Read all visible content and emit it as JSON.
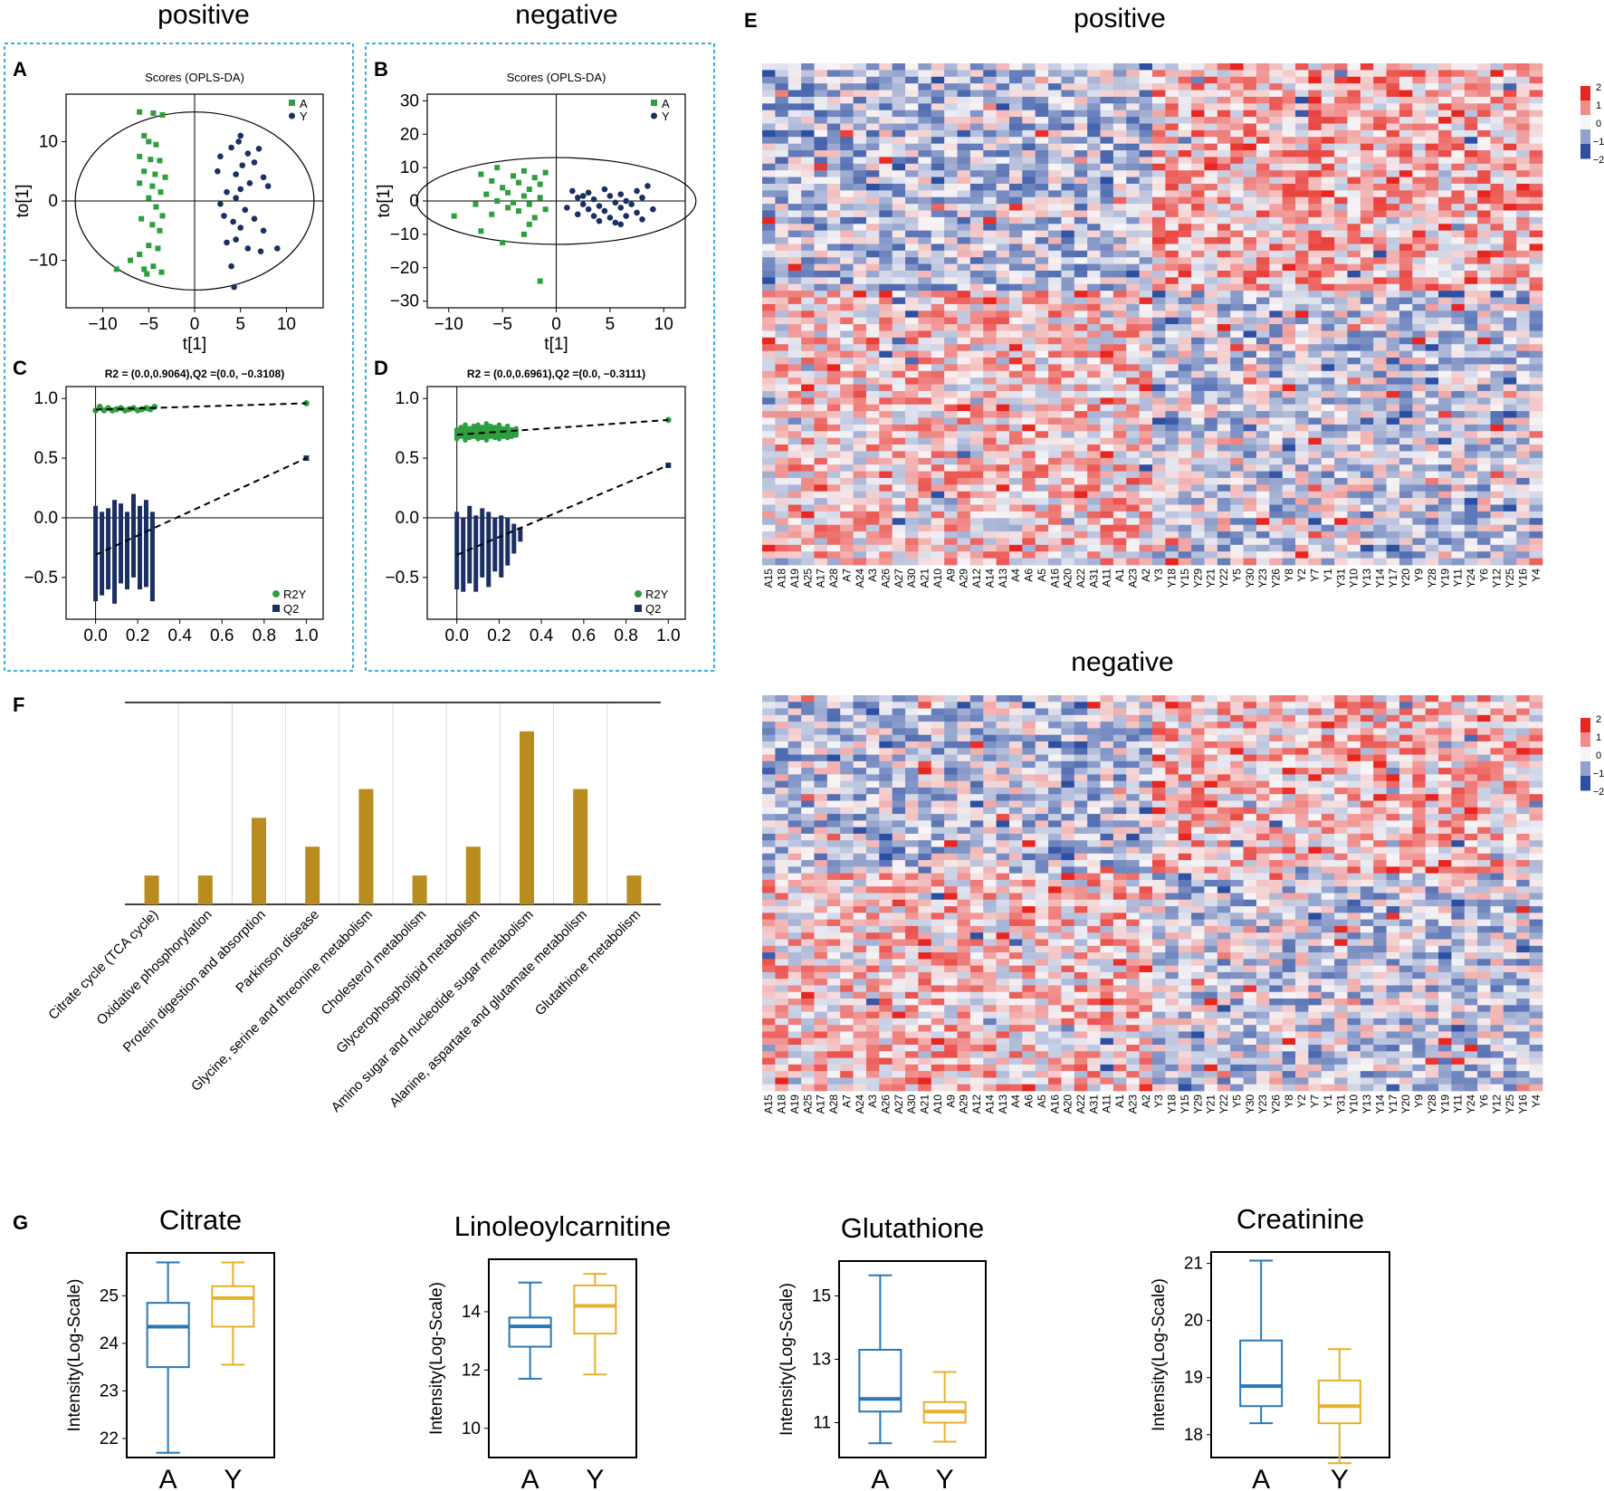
{
  "headers": {
    "pos_left": "positive",
    "neg_left": "negative",
    "pos_heatmap": "positive",
    "neg_heatmap": "negative"
  },
  "panel_letters": {
    "A": "A",
    "B": "B",
    "C": "C",
    "D": "D",
    "E": "E",
    "F": "F",
    "G": "G"
  },
  "chart_data": [
    {
      "id": "A",
      "type": "scatter",
      "title": "Scores (OPLS-DA)",
      "xlabel": "t[1]",
      "ylabel": "to[1]",
      "xlim": [
        -14,
        14
      ],
      "ylim": [
        -18,
        18
      ],
      "xticks": [
        -10,
        -5,
        0,
        5,
        10
      ],
      "yticks": [
        -10,
        0,
        10
      ],
      "legend": [
        "A",
        "Y"
      ],
      "series": [
        {
          "name": "A",
          "color": "#2e9e3e",
          "points": [
            [
              -6,
              15
            ],
            [
              -4.5,
              14.8
            ],
            [
              -3.5,
              14.5
            ],
            [
              -5.5,
              11
            ],
            [
              -5,
              10
            ],
            [
              -4.2,
              9.5
            ],
            [
              -6,
              7.5
            ],
            [
              -4.8,
              7
            ],
            [
              -3.8,
              6.8
            ],
            [
              -5.5,
              5
            ],
            [
              -4.3,
              4.5
            ],
            [
              -3.2,
              4
            ],
            [
              -6,
              3
            ],
            [
              -4.6,
              2.5
            ],
            [
              -3.7,
              1.5
            ],
            [
              -5,
              0.5
            ],
            [
              -4.2,
              -1
            ],
            [
              -3.5,
              -2.5
            ],
            [
              -5.8,
              -3
            ],
            [
              -4.6,
              -4
            ],
            [
              -3.8,
              -5
            ],
            [
              -5,
              -7.5
            ],
            [
              -4,
              -8
            ],
            [
              -6,
              -9
            ],
            [
              -7,
              -10
            ],
            [
              -5.5,
              -11.5
            ],
            [
              -4.5,
              -11
            ],
            [
              -8.5,
              -11.5
            ],
            [
              -3.6,
              -12
            ],
            [
              -5.2,
              -12.3
            ]
          ]
        },
        {
          "name": "Y",
          "color": "#1b2f63",
          "points": [
            [
              5,
              11
            ],
            [
              4.8,
              10
            ],
            [
              7,
              8.8
            ],
            [
              4,
              9
            ],
            [
              5.8,
              8
            ],
            [
              2.8,
              7.5
            ],
            [
              6.5,
              6.5
            ],
            [
              5.2,
              6
            ],
            [
              2.5,
              5
            ],
            [
              4.5,
              4.5
            ],
            [
              7.5,
              4
            ],
            [
              6,
              3
            ],
            [
              8,
              2.5
            ],
            [
              5,
              2
            ],
            [
              3.5,
              1.5
            ],
            [
              4.5,
              0.5
            ],
            [
              2.8,
              -0.5
            ],
            [
              5.5,
              -1.5
            ],
            [
              3.2,
              -2.5
            ],
            [
              6.5,
              -3
            ],
            [
              4.2,
              -3.5
            ],
            [
              5,
              -4.5
            ],
            [
              7.5,
              -5
            ],
            [
              4.5,
              -6.5
            ],
            [
              3.5,
              -7
            ],
            [
              5.8,
              -8
            ],
            [
              7.2,
              -8.5
            ],
            [
              9,
              -8
            ],
            [
              4,
              -11
            ],
            [
              4.3,
              -14.5
            ]
          ]
        }
      ]
    },
    {
      "id": "B",
      "type": "scatter",
      "title": "Scores (OPLS-DA)",
      "xlabel": "t[1]",
      "ylabel": "to[1]",
      "xlim": [
        -12,
        12
      ],
      "ylim": [
        -32,
        32
      ],
      "xticks": [
        -10,
        -5,
        0,
        5,
        10
      ],
      "yticks": [
        30,
        20,
        10,
        0,
        -10,
        -20,
        -30
      ],
      "legend": [
        "A",
        "Y"
      ],
      "series": [
        {
          "name": "A",
          "color": "#2e9e3e",
          "points": [
            [
              -5.5,
              10
            ],
            [
              -3,
              9
            ],
            [
              -1,
              8.5
            ],
            [
              -7,
              8
            ],
            [
              -4,
              7.5
            ],
            [
              -2,
              7
            ],
            [
              -6,
              6
            ],
            [
              -3.5,
              5.5
            ],
            [
              -1.5,
              5
            ],
            [
              -5,
              4
            ],
            [
              -2.5,
              3.5
            ],
            [
              -4.5,
              2.5
            ],
            [
              -6.5,
              2
            ],
            [
              -3,
              1.5
            ],
            [
              -1.5,
              1
            ],
            [
              -5.5,
              0
            ],
            [
              -4,
              -0.5
            ],
            [
              -2.5,
              -1
            ],
            [
              -7.5,
              -1
            ],
            [
              -4.5,
              -2
            ],
            [
              -1,
              -2.5
            ],
            [
              -3.5,
              -3
            ],
            [
              -6,
              -4
            ],
            [
              -2,
              -5
            ],
            [
              -9.5,
              -4.5
            ],
            [
              -7,
              -9
            ],
            [
              -3,
              -10
            ],
            [
              -5,
              -12.5
            ],
            [
              -2.5,
              -7
            ],
            [
              -1.5,
              -24
            ]
          ]
        },
        {
          "name": "Y",
          "color": "#1b2f63",
          "points": [
            [
              1.5,
              3
            ],
            [
              3,
              2.5
            ],
            [
              4.5,
              3.5
            ],
            [
              6,
              2
            ],
            [
              7.5,
              3
            ],
            [
              2,
              1
            ],
            [
              3.5,
              0.5
            ],
            [
              5,
              1.5
            ],
            [
              6.5,
              0
            ],
            [
              8,
              1
            ],
            [
              2.5,
              -1
            ],
            [
              4,
              -1.5
            ],
            [
              5.5,
              -0.5
            ],
            [
              7,
              -1
            ],
            [
              3,
              -2.5
            ],
            [
              4.5,
              -3
            ],
            [
              6,
              -2
            ],
            [
              7.5,
              -3.5
            ],
            [
              2,
              -4
            ],
            [
              3.5,
              -4.5
            ],
            [
              5,
              -5
            ],
            [
              6.5,
              -4.5
            ],
            [
              8,
              -5.5
            ],
            [
              4,
              -6
            ],
            [
              5.5,
              -6.5
            ],
            [
              1,
              -2
            ],
            [
              9,
              -2.5
            ],
            [
              2.5,
              1.5
            ],
            [
              8.5,
              4.5
            ],
            [
              6,
              -7
            ]
          ]
        }
      ]
    },
    {
      "id": "C",
      "type": "scatter",
      "title": "R2 = (0.0,0.9064),Q2 =(0.0, −0.3108)",
      "xlim": [
        -0.14,
        1.08
      ],
      "ylim": [
        -0.85,
        1.1
      ],
      "xticks": [
        0.0,
        0.2,
        0.4,
        0.6,
        0.8,
        1.0
      ],
      "yticks": [
        -0.5,
        0.0,
        0.5,
        1.0
      ],
      "legend": [
        "R2Y",
        "Q2"
      ],
      "r2y": {
        "x": [
          0.0,
          0.02,
          0.04,
          0.06,
          0.08,
          0.1,
          0.12,
          0.14,
          0.16,
          0.18,
          0.2,
          0.22,
          0.24,
          0.26,
          0.28,
          1.0
        ],
        "y": [
          0.9,
          0.93,
          0.9,
          0.92,
          0.9,
          0.91,
          0.92,
          0.9,
          0.91,
          0.92,
          0.9,
          0.91,
          0.92,
          0.91,
          0.93,
          0.96
        ]
      },
      "r2y_line": [
        [
          0.0,
          0.9064
        ],
        [
          1.0,
          0.96
        ]
      ],
      "q2": {
        "x": [
          0.0,
          0.03,
          0.06,
          0.09,
          0.12,
          0.15,
          0.18,
          0.21,
          0.24,
          0.27,
          1.0
        ],
        "ymin": [
          -0.7,
          -0.65,
          -0.6,
          -0.72,
          -0.55,
          -0.6,
          -0.5,
          -0.6,
          -0.58,
          -0.7,
          0.5
        ],
        "ymax": [
          0.1,
          0.05,
          0.08,
          0.15,
          0.12,
          0.05,
          0.2,
          0.1,
          0.15,
          0.05,
          0.5
        ]
      },
      "q2_line": [
        [
          0.0,
          -0.3108
        ],
        [
          1.0,
          0.5
        ]
      ]
    },
    {
      "id": "D",
      "type": "scatter",
      "title": "R2 = (0.0,0.6961),Q2 =(0.0, −0.3111)",
      "xlim": [
        -0.14,
        1.08
      ],
      "ylim": [
        -0.85,
        1.1
      ],
      "xticks": [
        0.0,
        0.2,
        0.4,
        0.6,
        0.8,
        1.0
      ],
      "yticks": [
        -0.5,
        0.0,
        0.5,
        1.0
      ],
      "legend": [
        "R2Y",
        "Q2"
      ],
      "r2y": {
        "x": [
          0.0,
          0.02,
          0.04,
          0.06,
          0.08,
          0.1,
          0.12,
          0.14,
          0.16,
          0.18,
          0.2,
          0.22,
          0.24,
          0.26,
          0.28,
          1.0
        ],
        "ymin": [
          0.64,
          0.66,
          0.63,
          0.65,
          0.66,
          0.64,
          0.65,
          0.63,
          0.66,
          0.65,
          0.64,
          0.66,
          0.65,
          0.66,
          0.67,
          0.82
        ],
        "ymax": [
          0.76,
          0.78,
          0.8,
          0.77,
          0.79,
          0.8,
          0.78,
          0.81,
          0.79,
          0.78,
          0.8,
          0.77,
          0.79,
          0.76,
          0.77,
          0.82
        ]
      },
      "r2y_line": [
        [
          0.0,
          0.6961
        ],
        [
          1.0,
          0.82
        ]
      ],
      "q2": {
        "x": [
          0.0,
          0.03,
          0.06,
          0.09,
          0.12,
          0.15,
          0.18,
          0.21,
          0.24,
          0.27,
          0.3,
          1.0
        ],
        "ymin": [
          -0.6,
          -0.62,
          -0.55,
          -0.62,
          -0.5,
          -0.58,
          -0.45,
          -0.5,
          -0.4,
          -0.3,
          -0.2,
          0.44
        ],
        "ymax": [
          0.05,
          0.0,
          0.1,
          0.02,
          0.08,
          0.05,
          0.0,
          0.02,
          0.0,
          -0.05,
          -0.08,
          0.44
        ]
      },
      "q2_line": [
        [
          0.0,
          -0.3111
        ],
        [
          1.0,
          0.44
        ]
      ]
    },
    {
      "id": "E",
      "type": "heatmap",
      "series_titles": [
        "positive",
        "negative"
      ],
      "columns": [
        "A15",
        "A18",
        "A19",
        "A25",
        "A17",
        "A28",
        "A7",
        "A24",
        "A3",
        "A26",
        "A27",
        "A30",
        "A21",
        "A10",
        "A9",
        "A29",
        "A12",
        "A14",
        "A13",
        "A4",
        "A6",
        "A5",
        "A16",
        "A20",
        "A22",
        "A31",
        "A11",
        "A1",
        "A23",
        "A2",
        "Y3",
        "Y18",
        "Y15",
        "Y29",
        "Y21",
        "Y22",
        "Y5",
        "Y30",
        "Y23",
        "Y26",
        "Y8",
        "Y2",
        "Y7",
        "Y1",
        "Y31",
        "Y10",
        "Y13",
        "Y14",
        "Y17",
        "Y20",
        "Y9",
        "Y28",
        "Y19",
        "Y11",
        "Y24",
        "Y6",
        "Y12",
        "Y25",
        "Y16",
        "Y4"
      ],
      "rows_positive": 75,
      "rows_negative": 60,
      "scale": [
        2,
        1,
        0,
        -1,
        -2
      ],
      "colors": {
        "high": "#e8251f",
        "mid": "#f7f5f7",
        "low": "#2d4fa2"
      }
    },
    {
      "id": "F",
      "type": "bar",
      "color": "#b98c1f",
      "categories": [
        "Citrate cycle (TCA cycle)",
        "Oxidative phosphorylation",
        "Protein digestion and absorption",
        "Parkinson disease",
        "Glycine, serine and threonine metabolism",
        "Cholesterol metabolism",
        "Glycerophospholipid metabolism",
        "Amino sugar and nucleotide sugar metabolism",
        "Alanine, aspartate and glutamate metabolism",
        "Glutathione metabolism"
      ],
      "values": [
        1,
        1,
        3,
        2,
        4,
        1,
        2,
        6,
        4,
        1
      ],
      "ylim": [
        0,
        7
      ]
    },
    {
      "id": "G",
      "type": "box",
      "ylabel": "Intensity(Log-Scale)",
      "categories": [
        "A",
        "Y"
      ],
      "colors": [
        "#2a78b7",
        "#e4b22b"
      ],
      "plots": [
        {
          "title": "Citrate",
          "ylim": [
            21.6,
            25.9
          ],
          "yticks": [
            22,
            23,
            24,
            25
          ],
          "boxes": [
            {
              "min": 21.7,
              "q1": 23.5,
              "median": 24.35,
              "q3": 24.85,
              "max": 25.7
            },
            {
              "min": 23.55,
              "q1": 24.35,
              "median": 24.95,
              "q3": 25.2,
              "max": 25.7
            }
          ]
        },
        {
          "title": "Linoleoylcarnitine",
          "ylim": [
            9,
            15.8
          ],
          "yticks": [
            10,
            12,
            14
          ],
          "boxes": [
            {
              "min": 11.7,
              "q1": 12.8,
              "median": 13.5,
              "q3": 13.8,
              "max": 15.0
            },
            {
              "min": 11.85,
              "q1": 13.25,
              "median": 14.2,
              "q3": 14.9,
              "max": 15.3
            }
          ]
        },
        {
          "title": "Glutathione",
          "ylim": [
            9.9,
            16.1
          ],
          "yticks": [
            11,
            13,
            15
          ],
          "boxes": [
            {
              "min": 10.35,
              "q1": 11.35,
              "median": 11.75,
              "q3": 13.3,
              "max": 15.65
            },
            {
              "min": 10.4,
              "q1": 11.0,
              "median": 11.35,
              "q3": 11.65,
              "max": 12.6
            }
          ]
        },
        {
          "title": "Creatinine",
          "ylim": [
            17.6,
            21.2
          ],
          "yticks": [
            18,
            19,
            20,
            21
          ],
          "boxes": [
            {
              "min": 18.2,
              "q1": 18.5,
              "median": 18.85,
              "q3": 19.65,
              "max": 21.05
            },
            {
              "min": 17.5,
              "q1": 18.2,
              "median": 18.5,
              "q3": 18.95,
              "max": 19.5
            }
          ]
        }
      ]
    }
  ]
}
